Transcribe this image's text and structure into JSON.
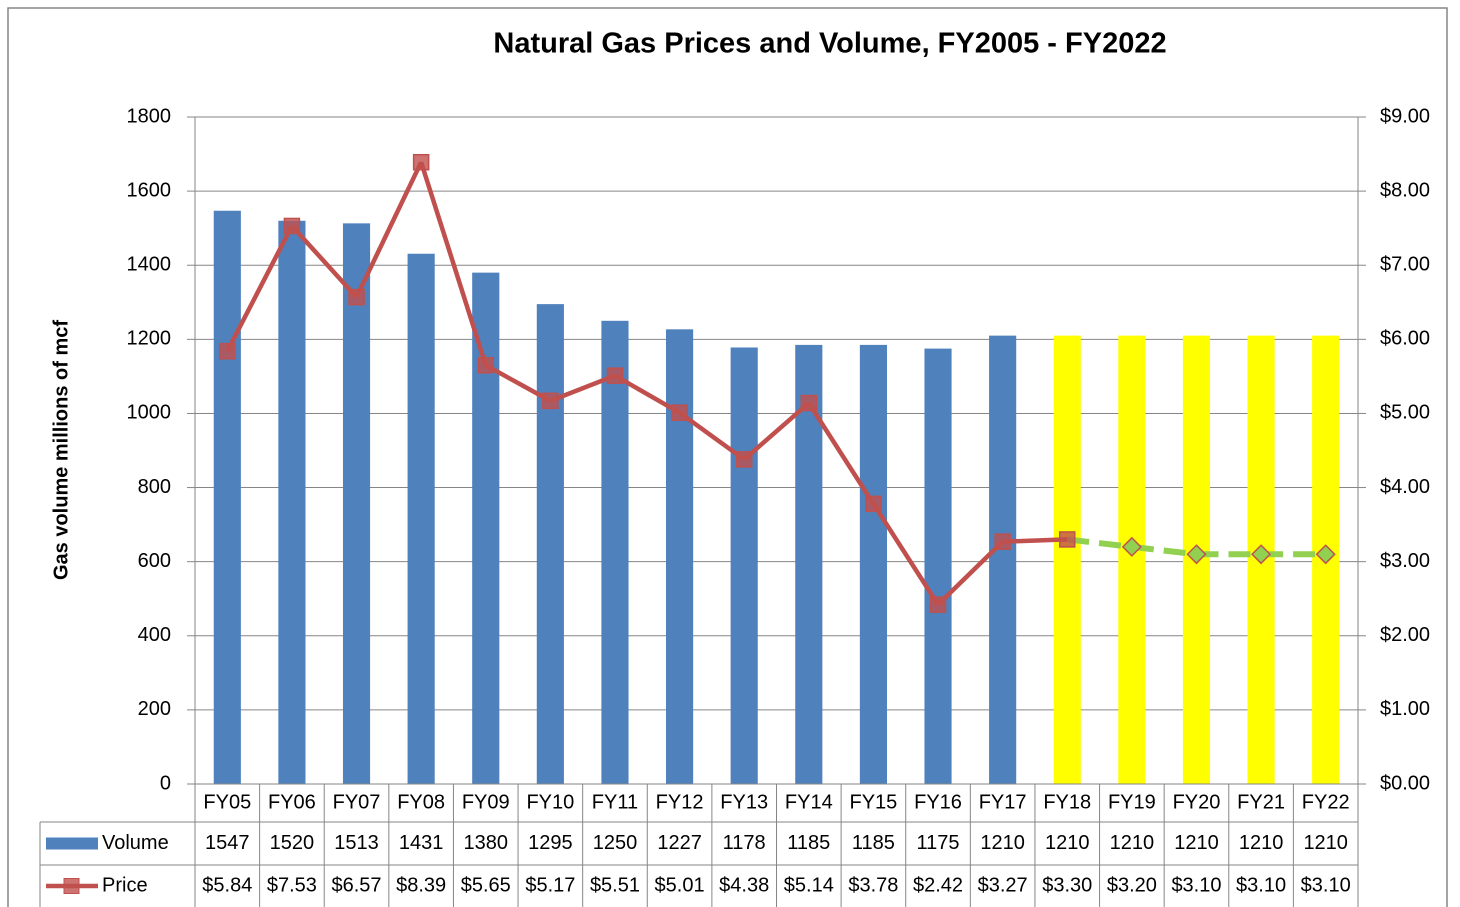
{
  "chart_data": {
    "type": "bar_line",
    "title": "Natural Gas Prices and Volume, FY2005 - FY2022",
    "y_label": "Gas volume millions of mcf",
    "categories": [
      "FY05",
      "FY06",
      "FY07",
      "FY08",
      "FY09",
      "FY10",
      "FY11",
      "FY12",
      "FY13",
      "FY14",
      "FY15",
      "FY16",
      "FY17",
      "FY18",
      "FY19",
      "FY20",
      "FY21",
      "FY22"
    ],
    "series": [
      {
        "name": "Volume",
        "type": "bar",
        "color": "#4f81bd",
        "values": [
          1547,
          1520,
          1513,
          1431,
          1380,
          1295,
          1250,
          1227,
          1178,
          1185,
          1185,
          1175,
          1210,
          1210,
          1210,
          1210,
          1210,
          1210
        ],
        "point_colors": [
          "#4f81bd",
          "#4f81bd",
          "#4f81bd",
          "#4f81bd",
          "#4f81bd",
          "#4f81bd",
          "#4f81bd",
          "#4f81bd",
          "#4f81bd",
          "#4f81bd",
          "#4f81bd",
          "#4f81bd",
          "#4f81bd",
          "#ffff00",
          "#ffff00",
          "#ffff00",
          "#ffff00",
          "#ffff00"
        ]
      },
      {
        "name": "Price",
        "type": "line",
        "axis": "y2",
        "color": "#c0504d",
        "values": [
          5.84,
          7.53,
          6.57,
          8.39,
          5.65,
          5.17,
          5.51,
          5.01,
          4.38,
          5.14,
          3.78,
          2.42,
          3.27,
          3.3,
          3.2,
          3.1,
          3.1,
          3.1
        ],
        "value_labels": [
          "$5.84",
          "$7.53",
          "$6.57",
          "$8.39",
          "$5.65",
          "$5.17",
          "$5.51",
          "$5.01",
          "$4.38",
          "$5.14",
          "$3.78",
          "$2.42",
          "$3.27",
          "$3.30",
          "$3.20",
          "$3.10",
          "$3.10",
          "$3.10"
        ],
        "point_colors": [
          "#c0504d",
          "#c0504d",
          "#c0504d",
          "#c0504d",
          "#c0504d",
          "#c0504d",
          "#c0504d",
          "#c0504d",
          "#c0504d",
          "#c0504d",
          "#c0504d",
          "#c0504d",
          "#c0504d",
          "#c0504d",
          "#92d050",
          "#92d050",
          "#92d050",
          "#92d050"
        ],
        "point_markers": [
          "square",
          "square",
          "square",
          "square",
          "square",
          "square",
          "square",
          "square",
          "square",
          "square",
          "square",
          "square",
          "square",
          "square",
          "diamond",
          "diamond",
          "diamond",
          "diamond"
        ],
        "line_styles": [
          "solid",
          "solid",
          "solid",
          "solid",
          "solid",
          "solid",
          "solid",
          "solid",
          "solid",
          "solid",
          "solid",
          "solid",
          "solid",
          "solid",
          "dashed",
          "dashed",
          "dashed",
          "dashed"
        ]
      }
    ],
    "ylim": [
      0,
      1800
    ],
    "yticks": [
      0,
      200,
      400,
      600,
      800,
      1000,
      1200,
      1400,
      1600,
      1800
    ],
    "y2lim": [
      0,
      9
    ],
    "y2ticks": [
      {
        "value": 0,
        "label": "$0.00"
      },
      {
        "value": 1,
        "label": "$1.00"
      },
      {
        "value": 2,
        "label": "$2.00"
      },
      {
        "value": 3,
        "label": "$3.00"
      },
      {
        "value": 4,
        "label": "$4.00"
      },
      {
        "value": 5,
        "label": "$5.00"
      },
      {
        "value": 6,
        "label": "$6.00"
      },
      {
        "value": 7,
        "label": "$7.00"
      },
      {
        "value": 8,
        "label": "$8.00"
      },
      {
        "value": 9,
        "label": "$9.00"
      }
    ],
    "grid": true,
    "data_table": true
  }
}
